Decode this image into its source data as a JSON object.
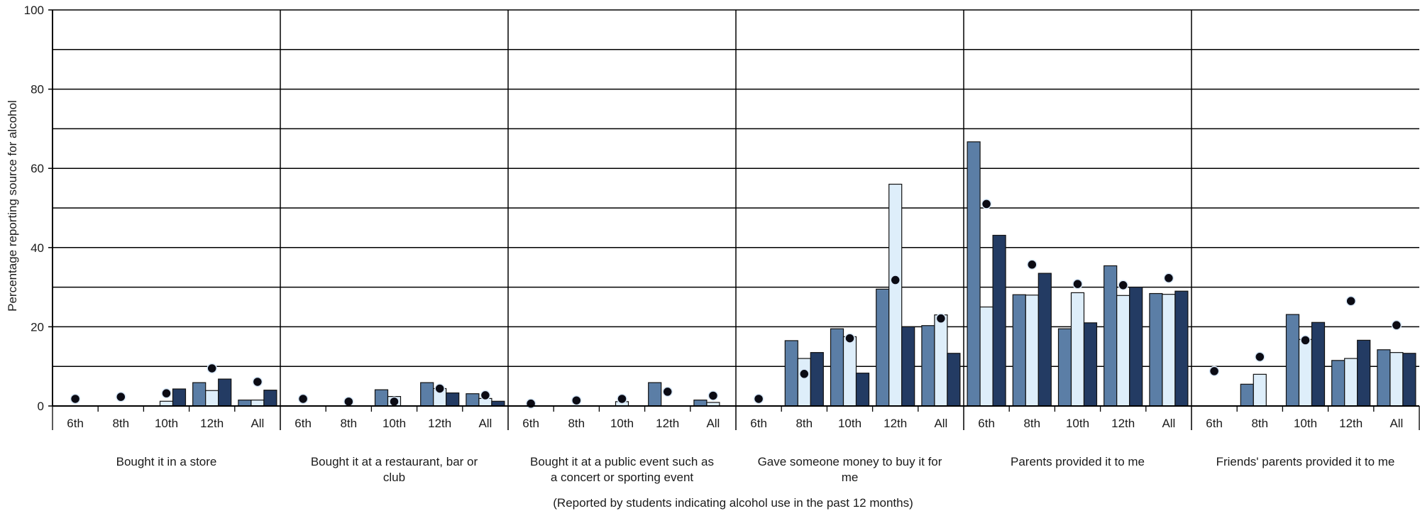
{
  "chart_data": {
    "type": "bar",
    "ylabel": "Percentage reporting source for alcohol",
    "note": "(Reported by students indicating alcohol use in the past 12 months)",
    "ylim": [
      0,
      100
    ],
    "yticks": [
      0,
      20,
      40,
      60,
      80,
      100
    ],
    "grid_step": 10,
    "subcategories": [
      "6th",
      "8th",
      "10th",
      "12th",
      "All"
    ],
    "colors": {
      "bar_a": "#5b7ea6",
      "bar_b": "#deeefa",
      "bar_c": "#233b63",
      "dot": "#0b0b14",
      "grid": "#000000"
    },
    "groups": [
      {
        "label": "Bought it in a store",
        "bars": [
          [
            0,
            0,
            0
          ],
          [
            0,
            0,
            0
          ],
          [
            0,
            1.2,
            4.3
          ],
          [
            5.9,
            3.9,
            6.8
          ],
          [
            1.5,
            1.5,
            4.0
          ]
        ],
        "dots": [
          1.8,
          2.3,
          3.2,
          9.5,
          6.1
        ]
      },
      {
        "label": "Bought it at a restaurant, bar or club",
        "bars": [
          [
            0,
            0,
            0
          ],
          [
            0,
            0,
            0
          ],
          [
            4.1,
            2.4,
            0
          ],
          [
            5.9,
            4.4,
            3.3
          ],
          [
            3.1,
            1.9,
            1.2
          ]
        ],
        "dots": [
          1.8,
          1.1,
          1.1,
          4.4,
          2.7
        ]
      },
      {
        "label": "Bought it at a public event such as a concert or sporting event",
        "bars": [
          [
            0,
            0,
            0
          ],
          [
            0,
            0,
            0
          ],
          [
            0,
            1.1,
            0
          ],
          [
            5.9,
            0,
            0
          ],
          [
            1.5,
            0.9,
            0
          ]
        ],
        "dots": [
          0.6,
          1.4,
          1.8,
          3.6,
          2.6
        ]
      },
      {
        "label": "Gave someone money to buy it for me",
        "bars": [
          [
            0,
            0,
            0
          ],
          [
            16.5,
            12.0,
            13.5
          ],
          [
            19.5,
            17.5,
            8.3
          ],
          [
            29.5,
            56.0,
            20.0
          ],
          [
            20.3,
            23.0,
            13.3
          ]
        ],
        "dots": [
          1.8,
          8.1,
          17.1,
          31.8,
          22.1
        ]
      },
      {
        "label": "Parents provided it to me",
        "bars": [
          [
            66.7,
            25.0,
            43.1
          ],
          [
            28.1,
            28.0,
            33.5
          ],
          [
            19.5,
            28.6,
            21.0
          ],
          [
            35.4,
            27.9,
            30.0
          ],
          [
            28.4,
            28.2,
            29.0
          ]
        ],
        "dots": [
          51.0,
          35.7,
          30.8,
          30.5,
          32.3
        ]
      },
      {
        "label": "Friends' parents provided it to me",
        "bars": [
          [
            0,
            0,
            0
          ],
          [
            5.5,
            8.0,
            0
          ],
          [
            23.1,
            16.8,
            21.1
          ],
          [
            11.5,
            12.0,
            16.6
          ],
          [
            14.2,
            13.5,
            13.3
          ]
        ],
        "dots": [
          8.8,
          12.4,
          16.6,
          26.5,
          20.4
        ]
      }
    ]
  }
}
